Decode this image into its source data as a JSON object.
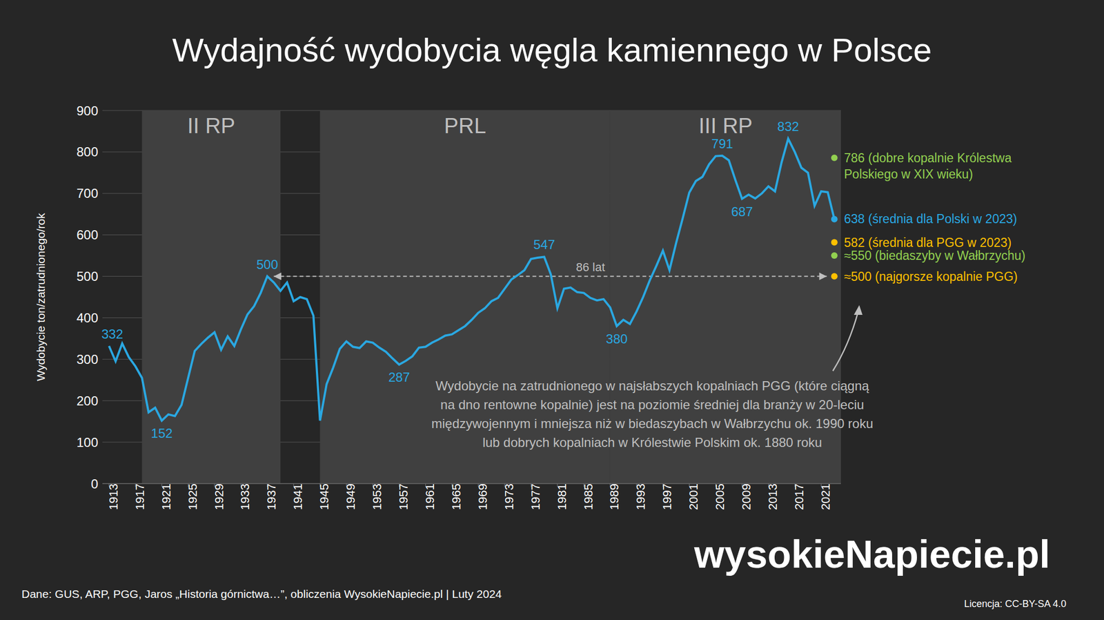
{
  "chart_data": {
    "type": "line",
    "title": "Wydajność wydobycia węgla kamiennego w Polsce",
    "y_label": "Wydobycie ton/zatrudnionego/rok",
    "x": [
      1913,
      1914,
      1915,
      1916,
      1917,
      1918,
      1919,
      1920,
      1921,
      1922,
      1923,
      1924,
      1925,
      1926,
      1927,
      1928,
      1929,
      1930,
      1931,
      1932,
      1933,
      1934,
      1935,
      1936,
      1937,
      1938,
      1939,
      1940,
      1941,
      1942,
      1943,
      1944,
      1945,
      1946,
      1947,
      1948,
      1949,
      1950,
      1951,
      1952,
      1953,
      1954,
      1955,
      1956,
      1957,
      1958,
      1959,
      1960,
      1961,
      1962,
      1963,
      1964,
      1965,
      1966,
      1967,
      1968,
      1969,
      1970,
      1971,
      1972,
      1973,
      1974,
      1975,
      1976,
      1977,
      1978,
      1979,
      1980,
      1981,
      1982,
      1983,
      1984,
      1985,
      1986,
      1987,
      1988,
      1989,
      1990,
      1991,
      1992,
      1993,
      1994,
      1995,
      1996,
      1997,
      1998,
      1999,
      2000,
      2001,
      2002,
      2003,
      2004,
      2005,
      2006,
      2007,
      2008,
      2009,
      2010,
      2011,
      2012,
      2013,
      2014,
      2015,
      2016,
      2017,
      2018,
      2019,
      2020,
      2021,
      2022,
      2023
    ],
    "values": [
      332,
      295,
      338,
      305,
      283,
      255,
      172,
      183,
      152,
      167,
      163,
      190,
      255,
      320,
      337,
      352,
      365,
      323,
      355,
      332,
      372,
      408,
      428,
      460,
      500,
      485,
      465,
      485,
      440,
      450,
      445,
      405,
      152,
      240,
      280,
      325,
      343,
      330,
      327,
      343,
      340,
      328,
      318,
      302,
      287,
      296,
      307,
      328,
      330,
      340,
      348,
      357,
      360,
      370,
      380,
      395,
      412,
      423,
      440,
      448,
      470,
      492,
      503,
      515,
      542,
      545,
      547,
      505,
      423,
      470,
      473,
      462,
      460,
      448,
      442,
      445,
      425,
      380,
      395,
      385,
      415,
      450,
      490,
      525,
      562,
      515,
      580,
      640,
      702,
      730,
      740,
      770,
      790,
      791,
      780,
      732,
      687,
      697,
      688,
      700,
      717,
      705,
      775,
      832,
      800,
      762,
      750,
      670,
      705,
      703,
      638
    ],
    "color": "#2aa8e2",
    "xlim": [
      1912,
      2024
    ],
    "xticks": [
      1913,
      1917,
      1921,
      1925,
      1929,
      1933,
      1937,
      1941,
      1945,
      1949,
      1953,
      1957,
      1961,
      1965,
      1969,
      1973,
      1977,
      1981,
      1985,
      1989,
      1993,
      1997,
      2001,
      2005,
      2009,
      2013,
      2017,
      2021
    ],
    "ylim": [
      0,
      900
    ],
    "yticks": [
      0,
      100,
      200,
      300,
      400,
      500,
      600,
      700,
      800,
      900
    ],
    "grid": true,
    "periods": [
      {
        "label": "II RP",
        "start": 1918,
        "end": 1939
      },
      {
        "label": "PRL",
        "start": 1945,
        "end": 1989
      },
      {
        "label": "III RP",
        "start": 1989,
        "end": 2024
      }
    ],
    "point_labels": [
      {
        "x": 1913,
        "text": "332"
      },
      {
        "x": 1921,
        "text": "152"
      },
      {
        "x": 1937,
        "text": "500"
      },
      {
        "x": 1957,
        "text": "287"
      },
      {
        "x": 1979,
        "text": "547"
      },
      {
        "x": 1990,
        "text": "380"
      },
      {
        "x": 2006,
        "text": "791"
      },
      {
        "x": 2009,
        "text": "687"
      },
      {
        "x": 2016,
        "text": "832"
      }
    ],
    "arrow": {
      "x1": 1937,
      "x2": 2023,
      "y": 500,
      "text": "86 lat"
    },
    "reference_points": [
      {
        "value": 786,
        "label": "786 (dobre kopalnie Królestwa Polskiego w XIX wieku)",
        "color": "#92d050"
      },
      {
        "value": 638,
        "label": "638 (średnia dla Polski w 2023)",
        "color": "#2aa8e2"
      },
      {
        "value": 582,
        "label": "582 (średnia dla PGG w 2023)",
        "color": "#ffc000"
      },
      {
        "value": 550,
        "label": "≈550 (biedaszyby w Wałbrzychu)",
        "color": "#92d050"
      },
      {
        "value": 500,
        "label": "≈500 (najgorsze kopalnie PGG)",
        "color": "#ffc000"
      }
    ],
    "note": "Wydobycie na zatrudnionego w najsłabszych kopalniach PGG (które ciągną na dno rentowne kopalnie) jest na poziomie średniej dla branży w 20-leciu międzywojennym i mniejsza niż w biedaszybach w Wałbrzychu ok. 1990 roku lub dobrych kopalniach w Królestwie Polskim ok. 1880 roku",
    "source": "Dane: GUS, ARP, PGG, Jaros „Historia górnictwa…”, obliczenia WysokieNapiecie.pl |  Luty 2024",
    "logo": "wysokieNapiecie.pl",
    "license": "Licencja: CC-BY-SA 4.0"
  }
}
